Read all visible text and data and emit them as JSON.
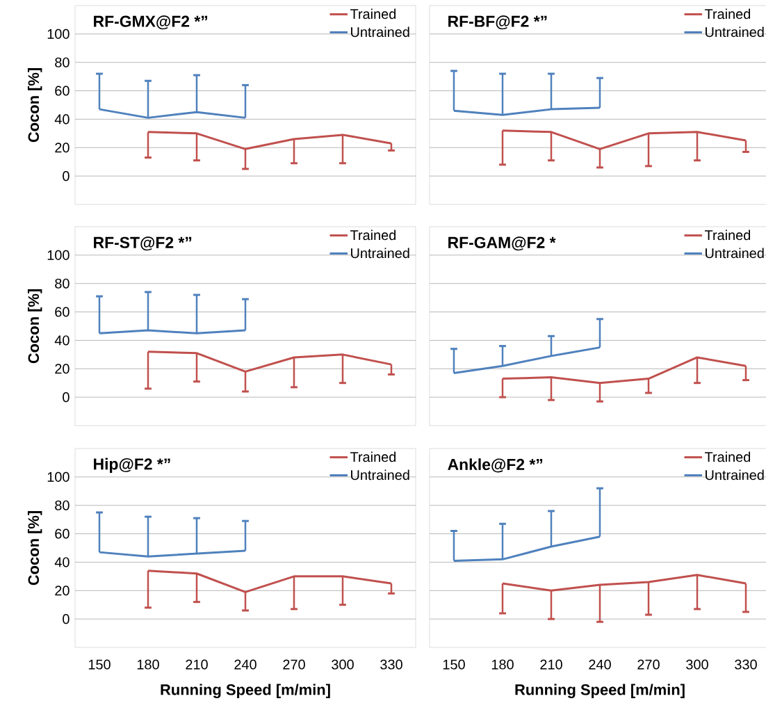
{
  "chart_data": [
    {
      "type": "line",
      "title": "RF-GMX@F2  *”",
      "ylabel": "Cocon [%]",
      "categories": [
        "150",
        "180",
        "210",
        "240",
        "270",
        "300",
        "330"
      ],
      "ylim": [
        -20,
        120
      ],
      "yticks": [
        0,
        20,
        40,
        60,
        80,
        100
      ],
      "grid": "y",
      "legend": "top right",
      "tick_labels": "y",
      "series": [
        {
          "name": "Trained",
          "color": "#c0504d",
          "values": [
            null,
            31,
            30,
            19,
            26,
            29,
            23
          ],
          "errors": [
            null,
            [
              13,
              31
            ],
            [
              11,
              30
            ],
            [
              5,
              19
            ],
            [
              9,
              26
            ],
            [
              9,
              29
            ],
            [
              18,
              23
            ]
          ]
        },
        {
          "name": "Untrained",
          "color": "#4f81bd",
          "values": [
            47,
            41,
            45,
            41,
            null,
            null,
            null
          ],
          "errors": [
            [
              47,
              72
            ],
            [
              41,
              67
            ],
            [
              45,
              71
            ],
            [
              41,
              64
            ],
            null,
            null,
            null
          ]
        }
      ]
    },
    {
      "type": "line",
      "title": "RF-BF@F2  *”",
      "categories": [
        "150",
        "180",
        "210",
        "240",
        "270",
        "300",
        "330"
      ],
      "ylim": [
        -20,
        120
      ],
      "yticks": [
        0,
        20,
        40,
        60,
        80,
        100
      ],
      "grid": "y",
      "legend": "top right",
      "tick_labels": false,
      "series": [
        {
          "name": "Trained",
          "color": "#c0504d",
          "values": [
            null,
            32,
            31,
            19,
            30,
            31,
            25
          ],
          "errors": [
            null,
            [
              8,
              32
            ],
            [
              11,
              31
            ],
            [
              6,
              19
            ],
            [
              7,
              30
            ],
            [
              11,
              31
            ],
            [
              17,
              25
            ]
          ]
        },
        {
          "name": "Untrained",
          "color": "#4f81bd",
          "values": [
            46,
            43,
            47,
            48,
            null,
            null,
            null
          ],
          "errors": [
            [
              46,
              74
            ],
            [
              43,
              72
            ],
            [
              47,
              72
            ],
            [
              48,
              69
            ],
            null,
            null,
            null
          ]
        }
      ]
    },
    {
      "type": "line",
      "title": "RF-ST@F2  *”",
      "ylabel": "Cocon [%]",
      "categories": [
        "150",
        "180",
        "210",
        "240",
        "270",
        "300",
        "330"
      ],
      "ylim": [
        -20,
        120
      ],
      "yticks": [
        0,
        20,
        40,
        60,
        80,
        100
      ],
      "grid": "y",
      "legend": "top right",
      "tick_labels": "y",
      "series": [
        {
          "name": "Trained",
          "color": "#c0504d",
          "values": [
            null,
            32,
            31,
            18,
            28,
            30,
            23
          ],
          "errors": [
            null,
            [
              6,
              32
            ],
            [
              11,
              31
            ],
            [
              4,
              18
            ],
            [
              7,
              28
            ],
            [
              10,
              30
            ],
            [
              16,
              23
            ]
          ]
        },
        {
          "name": "Untrained",
          "color": "#4f81bd",
          "values": [
            45,
            47,
            45,
            47,
            null,
            null,
            null
          ],
          "errors": [
            [
              45,
              71
            ],
            [
              47,
              74
            ],
            [
              45,
              72
            ],
            [
              47,
              69
            ],
            null,
            null,
            null
          ]
        }
      ]
    },
    {
      "type": "line",
      "title": "RF-GAM@F2  *",
      "categories": [
        "150",
        "180",
        "210",
        "240",
        "270",
        "300",
        "330"
      ],
      "ylim": [
        -20,
        120
      ],
      "yticks": [
        0,
        20,
        40,
        60,
        80,
        100
      ],
      "grid": "y",
      "legend": "top right",
      "tick_labels": false,
      "series": [
        {
          "name": "Trained",
          "color": "#c0504d",
          "values": [
            null,
            13,
            14,
            10,
            13,
            28,
            22
          ],
          "errors": [
            null,
            [
              0,
              13
            ],
            [
              -2,
              14
            ],
            [
              -3,
              10
            ],
            [
              3,
              13
            ],
            [
              10,
              28
            ],
            [
              12,
              22
            ]
          ]
        },
        {
          "name": "Untrained",
          "color": "#4f81bd",
          "values": [
            17,
            22,
            29,
            35,
            null,
            null,
            null
          ],
          "errors": [
            [
              17,
              34
            ],
            [
              22,
              36
            ],
            [
              29,
              43
            ],
            [
              35,
              55
            ],
            null,
            null,
            null
          ]
        }
      ]
    },
    {
      "type": "line",
      "title": "Hip@F2  *”",
      "xlabel": "Running Speed [m/min]",
      "ylabel": "Cocon [%]",
      "categories": [
        "150",
        "180",
        "210",
        "240",
        "270",
        "300",
        "330"
      ],
      "ylim": [
        -20,
        120
      ],
      "yticks": [
        0,
        20,
        40,
        60,
        80,
        100
      ],
      "grid": "y",
      "legend": "top right",
      "series": [
        {
          "name": "Trained",
          "color": "#c0504d",
          "values": [
            null,
            34,
            32,
            19,
            30,
            30,
            25
          ],
          "errors": [
            null,
            [
              8,
              34
            ],
            [
              12,
              32
            ],
            [
              6,
              19
            ],
            [
              7,
              30
            ],
            [
              10,
              30
            ],
            [
              18,
              25
            ]
          ]
        },
        {
          "name": "Untrained",
          "color": "#4f81bd",
          "values": [
            47,
            44,
            46,
            48,
            null,
            null,
            null
          ],
          "errors": [
            [
              47,
              75
            ],
            [
              44,
              72
            ],
            [
              46,
              71
            ],
            [
              48,
              69
            ],
            null,
            null,
            null
          ]
        }
      ]
    },
    {
      "type": "line",
      "title": "Ankle@F2  *”",
      "xlabel": "Running Speed [m/min]",
      "categories": [
        "150",
        "180",
        "210",
        "240",
        "270",
        "300",
        "330"
      ],
      "ylim": [
        -20,
        120
      ],
      "yticks": [
        0,
        20,
        40,
        60,
        80,
        100
      ],
      "grid": "y",
      "legend": "top right",
      "tick_labels": "x",
      "series": [
        {
          "name": "Trained",
          "color": "#c0504d",
          "values": [
            null,
            25,
            20,
            24,
            26,
            31,
            25
          ],
          "errors": [
            null,
            [
              4,
              25
            ],
            [
              0,
              20
            ],
            [
              -2,
              24
            ],
            [
              3,
              26
            ],
            [
              7,
              31
            ],
            [
              5,
              25
            ]
          ]
        },
        {
          "name": "Untrained",
          "color": "#4f81bd",
          "values": [
            41,
            42,
            51,
            58,
            null,
            null,
            null
          ],
          "errors": [
            [
              41,
              62
            ],
            [
              42,
              67
            ],
            [
              51,
              76
            ],
            [
              58,
              92
            ],
            null,
            null,
            null
          ]
        }
      ]
    }
  ]
}
